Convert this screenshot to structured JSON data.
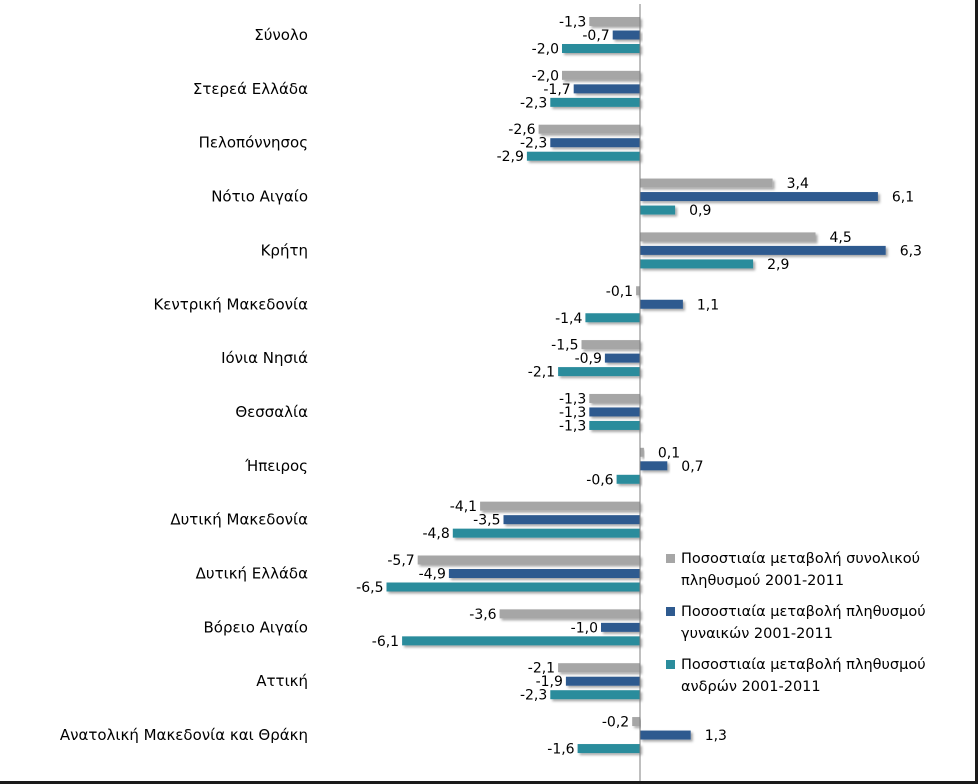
{
  "chart_data": {
    "type": "bar",
    "orientation": "horizontal",
    "categories": [
      "Σύνολο",
      "Στερεά Ελλάδα",
      "Πελοπόννησος",
      "Νότιο Αιγαίο",
      "Κρήτη",
      "Κεντρική Μακεδονία",
      "Ιόνια Νησιά",
      "Θεσσαλία",
      "Ήπειρος",
      "Δυτική Μακεδονία",
      "Δυτική Ελλάδα",
      "Βόρειο Αιγαίο",
      "Αττική",
      "Ανατολική Μακεδονία και Θράκη"
    ],
    "series": [
      {
        "name": "Ποσοστιαία μεταβολή συνολικού πληθυσμού 2001-2011",
        "name_lines": [
          "Ποσοστιαία μεταβολή συνολικού",
          "πληθυσμού 2001-2011"
        ],
        "color": "#a6a6a6",
        "values": [
          -1.3,
          -2.0,
          -2.6,
          3.4,
          4.5,
          -0.1,
          -1.5,
          -1.3,
          0.1,
          -4.1,
          -5.7,
          -3.6,
          -2.1,
          -0.2
        ],
        "labels": [
          "-1,3",
          "-2,0",
          "-2,6",
          "3,4",
          "4,5",
          "-0,1",
          "-1,5",
          "-1,3",
          "0,1",
          "-4,1",
          "-5,7",
          "-3,6",
          "-2,1",
          "-0,2"
        ]
      },
      {
        "name": "Ποσοστιαία μεταβολή πληθυσμού γυναικών 2001-2011",
        "name_lines": [
          "Ποσοστιαία μεταβολή πληθυσμού",
          "γυναικών 2001-2011"
        ],
        "color": "#2e5a8f",
        "values": [
          -0.7,
          -1.7,
          -2.3,
          6.1,
          6.3,
          1.1,
          -0.9,
          -1.3,
          0.7,
          -3.5,
          -4.9,
          -1.0,
          -1.9,
          1.3
        ],
        "labels": [
          "-0,7",
          "-1,7",
          "-2,3",
          "6,1",
          "6,3",
          "1,1",
          "-0,9",
          "-1,3",
          "0,7",
          "-3,5",
          "-4,9",
          "-1,0",
          "-1,9",
          "1,3"
        ]
      },
      {
        "name": "Ποσοστιαία μεταβολή πληθυσμού ανδρών 2001-2011",
        "name_lines": [
          "Ποσοστιαία μεταβολή πληθυσμού",
          "ανδρών 2001-2011"
        ],
        "color": "#2b8c9c",
        "values": [
          -2.0,
          -2.3,
          -2.9,
          0.9,
          2.9,
          -1.4,
          -2.1,
          -1.3,
          -0.6,
          -4.8,
          -6.5,
          -6.1,
          -2.3,
          -1.6
        ],
        "labels": [
          "-2,0",
          "-2,3",
          "-2,9",
          "0,9",
          "2,9",
          "-1,4",
          "-2,1",
          "-1,3",
          "-0,6",
          "-4,8",
          "-6,5",
          "-6,1",
          "-2,3",
          "-1,6"
        ]
      }
    ],
    "xlim": [
      -6.8,
      8.0
    ],
    "legend_position": "right",
    "grid": false,
    "title": "",
    "xlabel": "",
    "ylabel": ""
  }
}
